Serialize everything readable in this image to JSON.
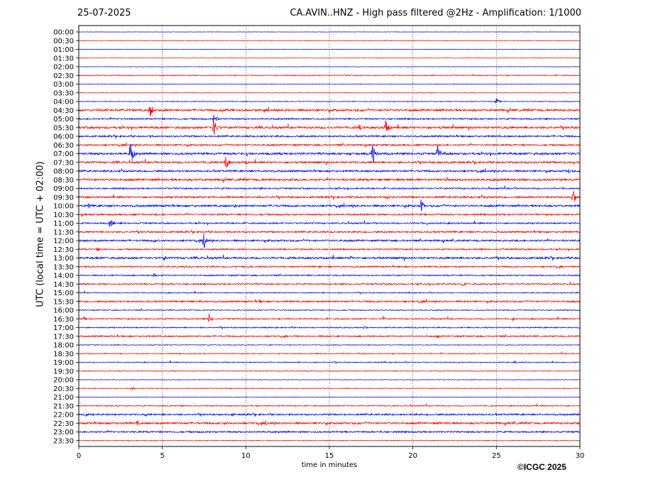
{
  "header": {
    "date": "25-07-2025",
    "title": "CA.AVIN..HNZ - High pass filtered @2Hz - Amplification: 1/1000"
  },
  "footer": {
    "copyright": "©ICGC 2025"
  },
  "chart_data": {
    "type": "line",
    "title": "CA.AVIN..HNZ - High pass filtered @2Hz - Amplification: 1/1000",
    "xlabel": "time in minutes",
    "ylabel": "UTC (local time = UTC + 02:00)",
    "xlim": [
      0,
      30
    ],
    "x_ticks": [
      0,
      5,
      10,
      15,
      20,
      25,
      30
    ],
    "grid": "vertical dotted lines at 5-minute ticks",
    "colors": {
      "odd_rows": "#0000ff",
      "even_rows": "#ff0000",
      "axes": "#000000"
    },
    "rows": [
      "00:00",
      "00:30",
      "01:00",
      "01:30",
      "02:00",
      "02:30",
      "03:00",
      "03:30",
      "04:00",
      "04:30",
      "05:00",
      "05:30",
      "06:00",
      "06:30",
      "07:00",
      "07:30",
      "08:00",
      "08:30",
      "09:00",
      "09:30",
      "10:00",
      "10:30",
      "11:00",
      "11:30",
      "12:00",
      "12:30",
      "13:00",
      "13:30",
      "14:00",
      "14:30",
      "15:00",
      "15:30",
      "16:00",
      "16:30",
      "17:00",
      "17:30",
      "18:00",
      "18:30",
      "19:00",
      "19:30",
      "20:00",
      "20:30",
      "21:00",
      "21:30",
      "22:00",
      "22:30",
      "23:00",
      "23:30"
    ],
    "row_noise_level": [
      0,
      0.1,
      0,
      0.05,
      0.05,
      0.3,
      0.05,
      0.1,
      0.2,
      1,
      0.6,
      1,
      0.7,
      0.7,
      1,
      0.9,
      0.8,
      1,
      0.6,
      0.8,
      0.9,
      0.7,
      0.6,
      0.7,
      0.8,
      0.6,
      0.9,
      0.6,
      0.5,
      0.6,
      0.3,
      0.7,
      0.3,
      0.5,
      0.4,
      0.6,
      0.2,
      0.3,
      0.3,
      0.2,
      0.1,
      0.2,
      0.05,
      0.4,
      0.7,
      0.9,
      0.7,
      0.2
    ],
    "events": [
      {
        "row": "02:30",
        "minute": 1.3,
        "amplitude": 1.5
      },
      {
        "row": "02:30",
        "minute": 3.2,
        "amplitude": 1.2
      },
      {
        "row": "04:00",
        "minute": 25.0,
        "amplitude": 5
      },
      {
        "row": "04:30",
        "minute": 4.3,
        "amplitude": 12
      },
      {
        "row": "04:30",
        "minute": 5.2,
        "amplitude": 3
      },
      {
        "row": "05:00",
        "minute": 8.1,
        "amplitude": 10
      },
      {
        "row": "05:30",
        "minute": 8.1,
        "amplitude": 14
      },
      {
        "row": "05:30",
        "minute": 18.4,
        "amplitude": 16
      },
      {
        "row": "05:30",
        "minute": 16.8,
        "amplitude": 5
      },
      {
        "row": "06:30",
        "minute": 24.8,
        "amplitude": 3
      },
      {
        "row": "07:00",
        "minute": 3.1,
        "amplitude": 22
      },
      {
        "row": "07:00",
        "minute": 17.6,
        "amplitude": 20
      },
      {
        "row": "07:00",
        "minute": 21.5,
        "amplitude": 15
      },
      {
        "row": "07:30",
        "minute": 8.8,
        "amplitude": 12
      },
      {
        "row": "07:30",
        "minute": 10.0,
        "amplitude": 4
      },
      {
        "row": "08:00",
        "minute": 29.3,
        "amplitude": 4
      },
      {
        "row": "09:30",
        "minute": 18.5,
        "amplitude": 4
      },
      {
        "row": "09:30",
        "minute": 29.6,
        "amplitude": 12
      },
      {
        "row": "10:00",
        "minute": 0.6,
        "amplitude": 4
      },
      {
        "row": "10:00",
        "minute": 9.3,
        "amplitude": 3
      },
      {
        "row": "10:00",
        "minute": 20.5,
        "amplitude": 10
      },
      {
        "row": "11:00",
        "minute": 1.9,
        "amplitude": 12
      },
      {
        "row": "11:00",
        "minute": 20.8,
        "amplitude": 3
      },
      {
        "row": "12:00",
        "minute": 7.5,
        "amplitude": 13
      },
      {
        "row": "12:00",
        "minute": 4.5,
        "amplitude": 3
      },
      {
        "row": "12:30",
        "minute": 1.1,
        "amplitude": 4
      },
      {
        "row": "13:00",
        "minute": 5.1,
        "amplitude": 5
      },
      {
        "row": "13:00",
        "minute": 16.3,
        "amplitude": 4
      },
      {
        "row": "14:00",
        "minute": 4.5,
        "amplitude": 3
      },
      {
        "row": "14:30",
        "minute": 23.0,
        "amplitude": 4
      },
      {
        "row": "15:30",
        "minute": 7.3,
        "amplitude": 4
      },
      {
        "row": "15:30",
        "minute": 10.8,
        "amplitude": 4
      },
      {
        "row": "16:30",
        "minute": 7.8,
        "amplitude": 8
      },
      {
        "row": "16:30",
        "minute": 0.3,
        "amplitude": 4
      },
      {
        "row": "16:30",
        "minute": 18.2,
        "amplitude": 4
      },
      {
        "row": "16:30",
        "minute": 26.0,
        "amplitude": 3
      },
      {
        "row": "17:00",
        "minute": 17.1,
        "amplitude": 3
      },
      {
        "row": "17:30",
        "minute": 21.5,
        "amplitude": 3
      },
      {
        "row": "19:00",
        "minute": 26.1,
        "amplitude": 3
      },
      {
        "row": "20:30",
        "minute": 3.2,
        "amplitude": 3
      },
      {
        "row": "22:00",
        "minute": 0.4,
        "amplitude": 4
      },
      {
        "row": "22:00",
        "minute": 4.0,
        "amplitude": 3
      },
      {
        "row": "22:00",
        "minute": 9.2,
        "amplitude": 3
      },
      {
        "row": "22:30",
        "minute": 3.5,
        "amplitude": 4
      },
      {
        "row": "22:30",
        "minute": 8.7,
        "amplitude": 3
      },
      {
        "row": "22:30",
        "minute": 11.2,
        "amplitude": 3
      },
      {
        "row": "23:00",
        "minute": 18.1,
        "amplitude": 2
      }
    ]
  }
}
